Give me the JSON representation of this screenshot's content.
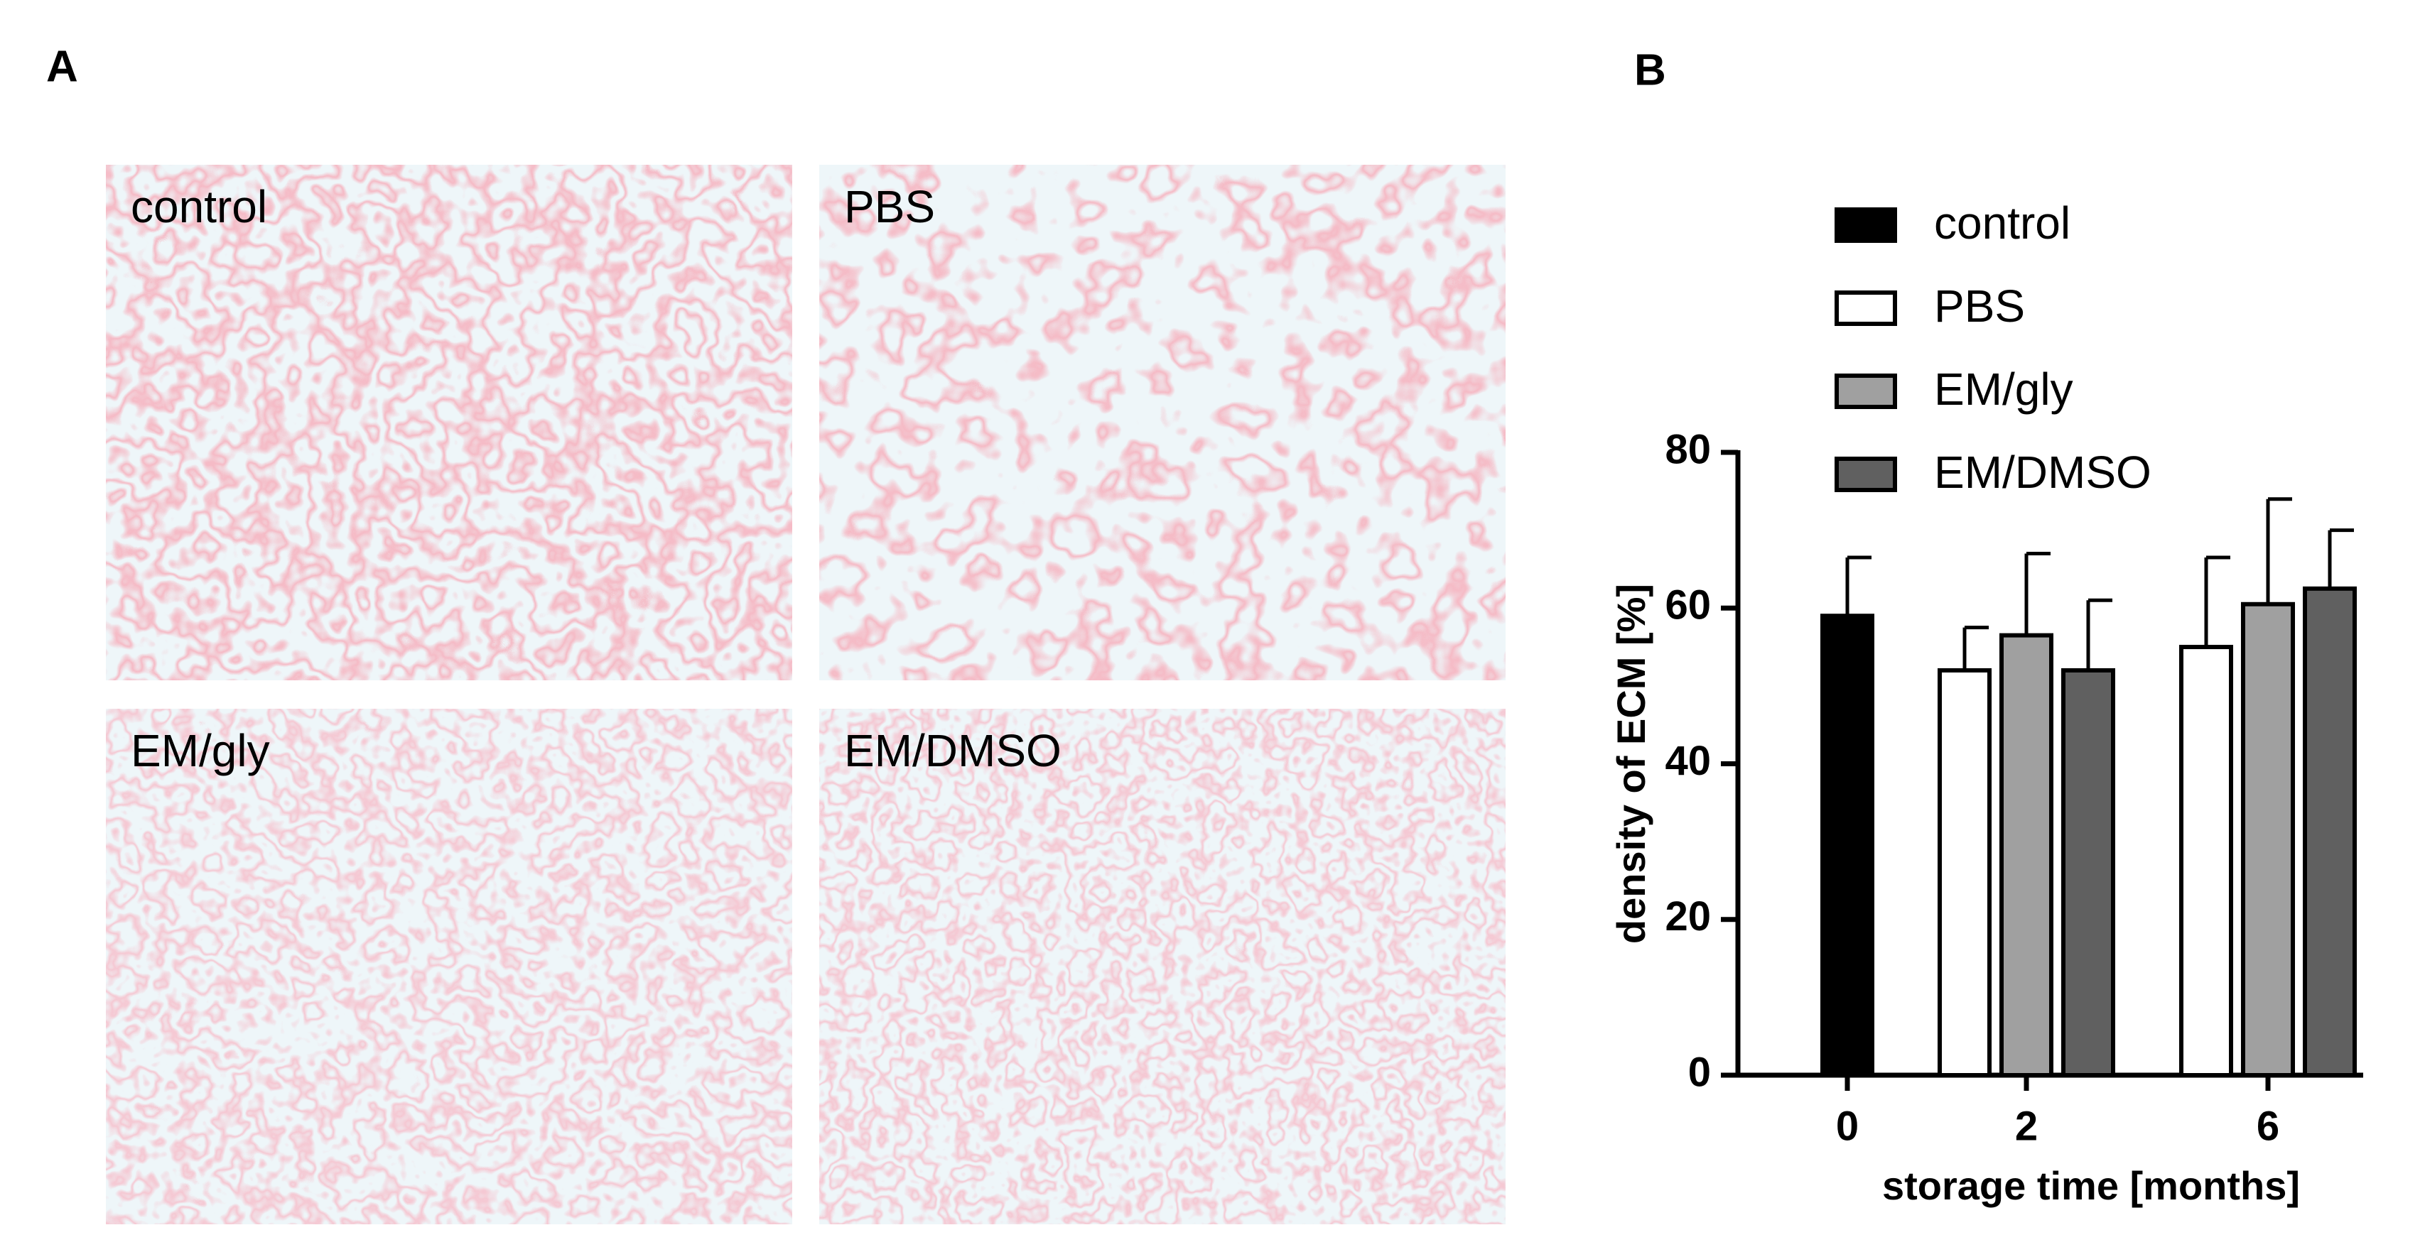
{
  "panel_a": {
    "label": "A",
    "images": [
      {
        "label": "control"
      },
      {
        "label": "PBS"
      },
      {
        "label": "EM/gly"
      },
      {
        "label": "EM/DMSO"
      }
    ]
  },
  "chart_data": {
    "type": "bar",
    "panel_label": "B",
    "xlabel": "storage time [months]",
    "ylabel": "density of ECM [%]",
    "categories": [
      "0",
      "2",
      "6"
    ],
    "series": [
      {
        "name": "control",
        "color": "#000000",
        "values": [
          59,
          null,
          null
        ],
        "errors": [
          7.5,
          null,
          null
        ]
      },
      {
        "name": "PBS",
        "color": "#ffffff",
        "values": [
          null,
          52,
          55
        ],
        "errors": [
          null,
          5.5,
          11.5
        ]
      },
      {
        "name": "EM/gly",
        "color": "#a0a0a0",
        "values": [
          null,
          56.5,
          60.5
        ],
        "errors": [
          null,
          10.5,
          13.5
        ]
      },
      {
        "name": "EM/DMSO",
        "color": "#606060",
        "values": [
          null,
          52,
          62.5
        ],
        "errors": [
          null,
          9,
          7.5
        ]
      }
    ],
    "ylim": [
      0,
      80
    ],
    "yticks": [
      0,
      20,
      40,
      60,
      80
    ]
  }
}
